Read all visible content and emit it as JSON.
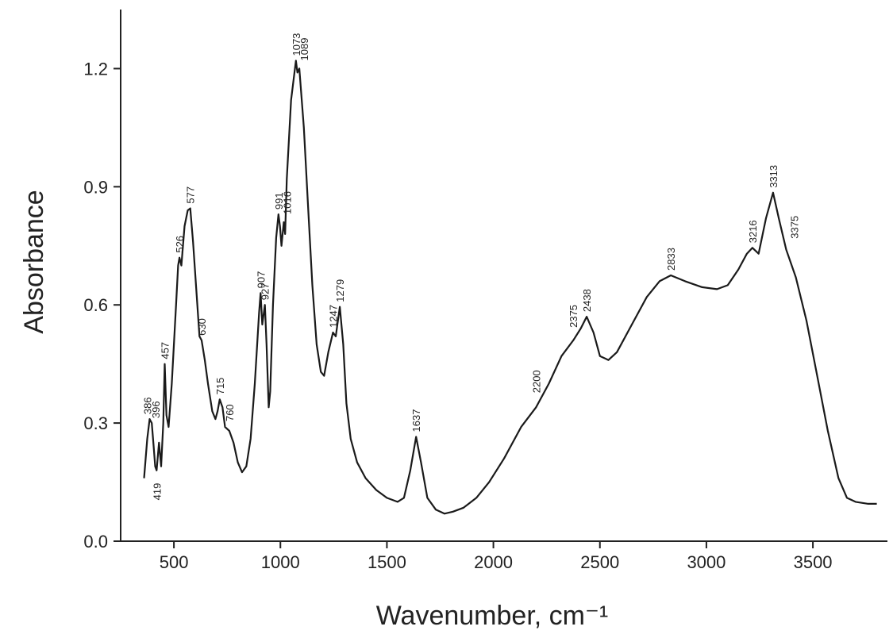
{
  "chart_data": {
    "type": "line",
    "xlabel": "Wavenumber, cm⁻¹",
    "ylabel": "Absorbance",
    "color": "#1a1a1a",
    "xlim": [
      250,
      3850
    ],
    "ylim": [
      0,
      1.35
    ],
    "xticks": [
      500,
      1000,
      1500,
      2000,
      2500,
      3000,
      3500
    ],
    "yticks": [
      {
        "value": 0,
        "label": "0.0"
      },
      0.3,
      0.6,
      0.9,
      1.2
    ],
    "x": [
      360,
      375,
      386,
      396,
      405,
      412,
      419,
      430,
      440,
      450,
      457,
      465,
      475,
      490,
      510,
      520,
      526,
      535,
      550,
      565,
      577,
      590,
      610,
      620,
      630,
      645,
      660,
      680,
      695,
      705,
      715,
      728,
      740,
      760,
      780,
      800,
      820,
      840,
      860,
      880,
      900,
      907,
      915,
      927,
      935,
      945,
      952,
      965,
      980,
      991,
      998,
      1005,
      1016,
      1022,
      1030,
      1050,
      1073,
      1080,
      1089,
      1110,
      1130,
      1150,
      1170,
      1190,
      1205,
      1225,
      1247,
      1260,
      1279,
      1295,
      1310,
      1330,
      1360,
      1400,
      1450,
      1500,
      1550,
      1580,
      1610,
      1637,
      1660,
      1690,
      1730,
      1770,
      1810,
      1860,
      1920,
      1980,
      2050,
      2130,
      2200,
      2260,
      2320,
      2375,
      2410,
      2438,
      2470,
      2500,
      2540,
      2580,
      2650,
      2720,
      2780,
      2833,
      2900,
      2980,
      3050,
      3100,
      3150,
      3190,
      3216,
      3245,
      3280,
      3313,
      3340,
      3375,
      3420,
      3470,
      3520,
      3570,
      3620,
      3660,
      3700,
      3760,
      3800
    ],
    "values": [
      0.16,
      0.26,
      0.31,
      0.3,
      0.24,
      0.19,
      0.18,
      0.25,
      0.19,
      0.3,
      0.45,
      0.32,
      0.29,
      0.4,
      0.6,
      0.7,
      0.72,
      0.7,
      0.8,
      0.84,
      0.845,
      0.76,
      0.6,
      0.52,
      0.51,
      0.46,
      0.4,
      0.33,
      0.31,
      0.33,
      0.36,
      0.34,
      0.29,
      0.28,
      0.25,
      0.2,
      0.175,
      0.19,
      0.26,
      0.4,
      0.58,
      0.63,
      0.55,
      0.6,
      0.5,
      0.34,
      0.38,
      0.6,
      0.77,
      0.83,
      0.8,
      0.75,
      0.81,
      0.78,
      0.92,
      1.12,
      1.22,
      1.19,
      1.2,
      1.05,
      0.85,
      0.65,
      0.5,
      0.43,
      0.42,
      0.48,
      0.53,
      0.52,
      0.595,
      0.5,
      0.35,
      0.26,
      0.2,
      0.16,
      0.13,
      0.11,
      0.1,
      0.11,
      0.18,
      0.265,
      0.2,
      0.11,
      0.08,
      0.07,
      0.075,
      0.085,
      0.11,
      0.15,
      0.21,
      0.29,
      0.34,
      0.4,
      0.47,
      0.51,
      0.54,
      0.57,
      0.53,
      0.47,
      0.46,
      0.48,
      0.55,
      0.62,
      0.66,
      0.675,
      0.66,
      0.645,
      0.64,
      0.65,
      0.69,
      0.73,
      0.745,
      0.73,
      0.82,
      0.885,
      0.82,
      0.74,
      0.67,
      0.56,
      0.42,
      0.28,
      0.16,
      0.11,
      0.1,
      0.095,
      0.095
    ],
    "peak_labels": [
      386,
      396,
      419,
      457,
      526,
      577,
      630,
      715,
      760,
      907,
      927,
      991,
      1016,
      1073,
      1089,
      1247,
      1279,
      1637,
      2200,
      2375,
      2438,
      2833,
      3216,
      3313,
      3375
    ]
  }
}
